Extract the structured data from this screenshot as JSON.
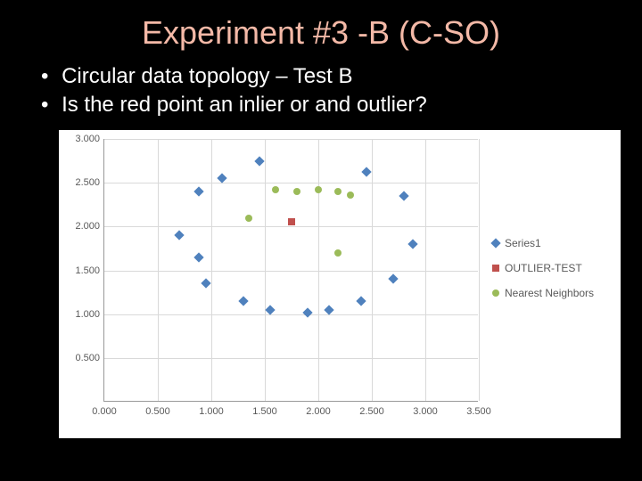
{
  "slide": {
    "title": "Experiment #3 -B (C-SO)",
    "bullets": [
      "Circular data topology – Test B",
      "Is the red point an inlier or and outlier?"
    ],
    "background_color": "#000000",
    "title_color": "#f4b9a7",
    "text_color": "#ffffff"
  },
  "chart": {
    "type": "scatter",
    "background_color": "#ffffff",
    "grid_color": "#d9d9d9",
    "axis_color": "#999999",
    "label_color": "#595959",
    "label_fontsize": 11,
    "xlim": [
      0.0,
      3.5
    ],
    "ylim": [
      0.0,
      3.0
    ],
    "xtick_step": 0.5,
    "ytick_step": 0.5,
    "xtick_labels": [
      "0.000",
      "0.500",
      "1.000",
      "1.500",
      "2.000",
      "2.500",
      "3.000",
      "3.500"
    ],
    "ytick_labels": [
      "0.500",
      "1.000",
      "1.500",
      "2.000",
      "2.500",
      "3.000"
    ],
    "series": [
      {
        "name": "Series1",
        "marker": "diamond",
        "color": "#4f81bd",
        "size": 8,
        "points": [
          [
            0.7,
            1.9
          ],
          [
            0.88,
            2.4
          ],
          [
            1.1,
            2.55
          ],
          [
            1.45,
            2.75
          ],
          [
            0.88,
            1.65
          ],
          [
            0.95,
            1.35
          ],
          [
            1.3,
            1.15
          ],
          [
            1.55,
            1.05
          ],
          [
            1.9,
            1.02
          ],
          [
            2.1,
            1.05
          ],
          [
            2.4,
            1.15
          ],
          [
            2.7,
            1.4
          ],
          [
            2.88,
            1.8
          ],
          [
            2.8,
            2.35
          ],
          [
            2.45,
            2.62
          ]
        ]
      },
      {
        "name": "OUTLIER-TEST",
        "marker": "square",
        "color": "#c0504d",
        "size": 8,
        "points": [
          [
            1.75,
            2.05
          ]
        ]
      },
      {
        "name": "Nearest Neighbors",
        "marker": "circle",
        "color": "#9bbb59",
        "size": 8,
        "points": [
          [
            1.35,
            2.1
          ],
          [
            1.6,
            2.42
          ],
          [
            1.8,
            2.4
          ],
          [
            2.0,
            2.42
          ],
          [
            2.18,
            2.4
          ],
          [
            2.18,
            1.7
          ],
          [
            2.3,
            2.36
          ]
        ]
      }
    ],
    "legend": {
      "position": "right",
      "fontsize": 12,
      "items": [
        {
          "label": "Series1",
          "marker": "diamond",
          "color": "#4f81bd"
        },
        {
          "label": "OUTLIER-TEST",
          "marker": "square",
          "color": "#c0504d"
        },
        {
          "label": "Nearest Neighbors",
          "marker": "circle",
          "color": "#9bbb59"
        }
      ]
    }
  }
}
